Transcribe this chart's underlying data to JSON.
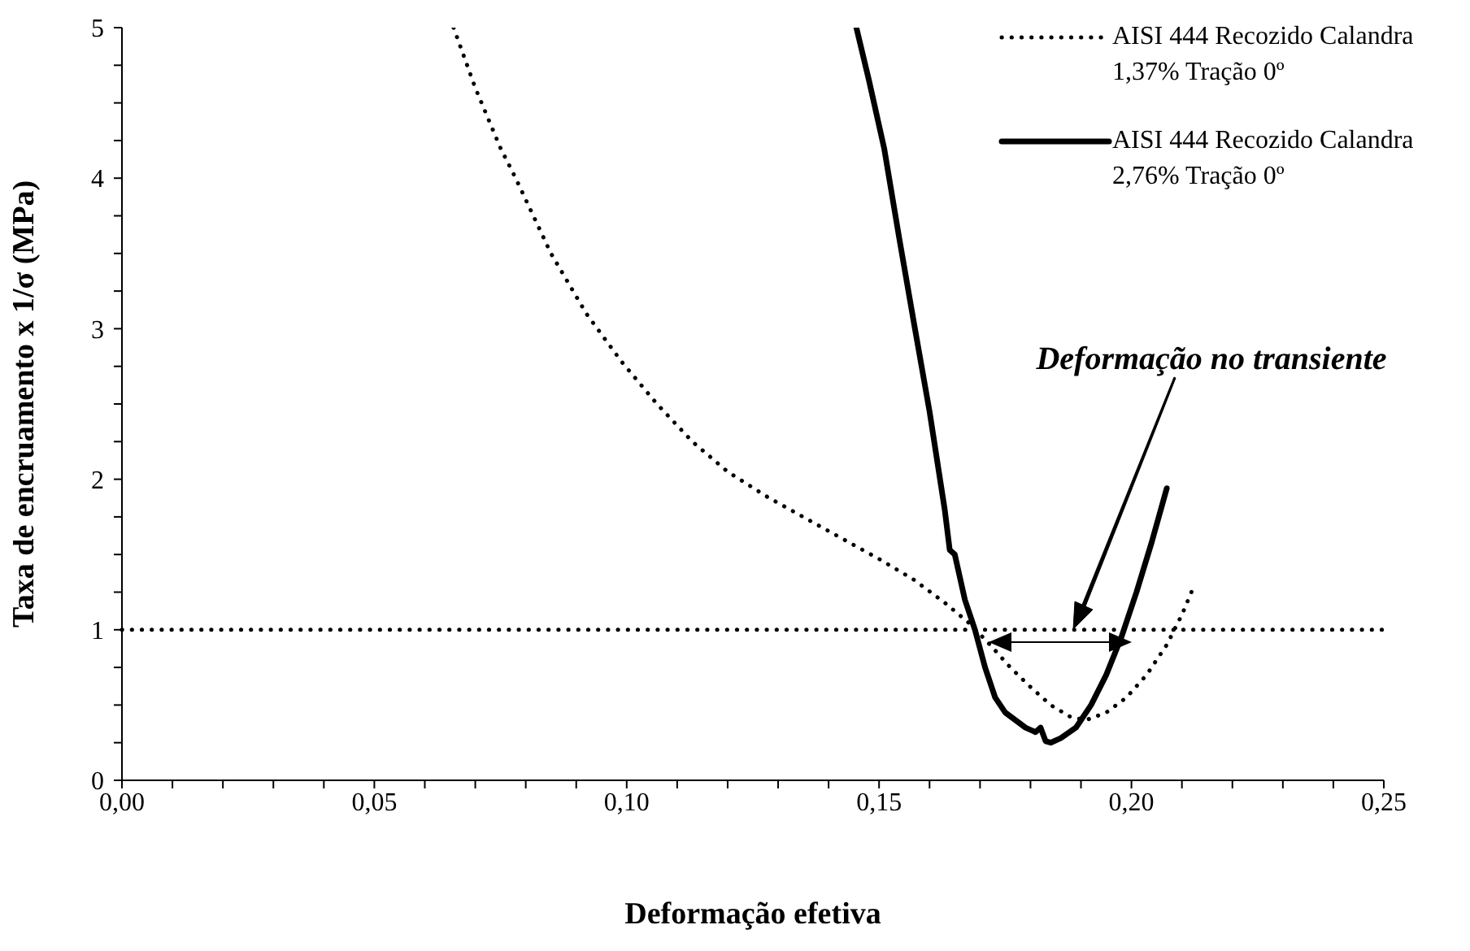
{
  "chart_data": {
    "type": "line",
    "xlabel": "Deformação efetiva",
    "ylabel": "Taxa de encruamento x 1/σ (MPa)",
    "xlim": [
      0,
      0.25
    ],
    "ylim": [
      0,
      5
    ],
    "xticks": [
      {
        "value": 0,
        "label": "0,00"
      },
      {
        "value": 0.01,
        "label": null
      },
      {
        "value": 0.02,
        "label": null
      },
      {
        "value": 0.03,
        "label": null
      },
      {
        "value": 0.04,
        "label": null
      },
      {
        "value": 0.05,
        "label": "0,05"
      },
      {
        "value": 0.06,
        "label": null
      },
      {
        "value": 0.07,
        "label": null
      },
      {
        "value": 0.08,
        "label": null
      },
      {
        "value": 0.09,
        "label": null
      },
      {
        "value": 0.1,
        "label": "0,10"
      },
      {
        "value": 0.11,
        "label": null
      },
      {
        "value": 0.12,
        "label": null
      },
      {
        "value": 0.13,
        "label": null
      },
      {
        "value": 0.14,
        "label": null
      },
      {
        "value": 0.15,
        "label": "0,15"
      },
      {
        "value": 0.16,
        "label": null
      },
      {
        "value": 0.17,
        "label": null
      },
      {
        "value": 0.18,
        "label": null
      },
      {
        "value": 0.19,
        "label": null
      },
      {
        "value": 0.2,
        "label": "0,20"
      },
      {
        "value": 0.21,
        "label": null
      },
      {
        "value": 0.22,
        "label": null
      },
      {
        "value": 0.23,
        "label": null
      },
      {
        "value": 0.24,
        "label": null
      },
      {
        "value": 0.25,
        "label": "0,25"
      }
    ],
    "yticks": [
      0,
      {
        "value": 0.25,
        "label": null
      },
      {
        "value": 0.5,
        "label": null
      },
      {
        "value": 0.75,
        "label": null
      },
      1,
      {
        "value": 1.25,
        "label": null
      },
      {
        "value": 1.5,
        "label": null
      },
      {
        "value": 1.75,
        "label": null
      },
      2,
      {
        "value": 2.25,
        "label": null
      },
      {
        "value": 2.5,
        "label": null
      },
      {
        "value": 2.75,
        "label": null
      },
      3,
      {
        "value": 3.25,
        "label": null
      },
      {
        "value": 3.5,
        "label": null
      },
      {
        "value": 3.75,
        "label": null
      },
      4,
      {
        "value": 4.25,
        "label": null
      },
      {
        "value": 4.5,
        "label": null
      },
      {
        "value": 4.75,
        "label": null
      },
      5
    ],
    "grid": false,
    "legend": "top right",
    "marker": "none",
    "series": [
      {
        "name": "AISI 444 Recozido Calandra 1,37% Tração 0º",
        "color": "#000000",
        "line_style": "dotted",
        "x": [
          0.0657,
          0.07,
          0.075,
          0.078,
          0.085,
          0.092,
          0.099,
          0.106,
          0.113,
          0.12,
          0.128,
          0.136,
          0.143,
          0.15,
          0.157,
          0.163,
          0.168,
          0.172,
          0.176,
          0.18,
          0.184,
          0.188,
          0.191,
          0.195,
          0.199,
          0.203,
          0.207,
          0.21,
          0.212
        ],
        "values": [
          5,
          4.6,
          4.2,
          4.0,
          3.5,
          3.1,
          2.78,
          2.5,
          2.25,
          2.05,
          1.88,
          1.73,
          1.6,
          1.47,
          1.33,
          1.18,
          1.04,
          0.9,
          0.75,
          0.62,
          0.5,
          0.42,
          0.4,
          0.45,
          0.55,
          0.7,
          0.9,
          1.1,
          1.26
        ]
      },
      {
        "name": "AISI 444 Recozido Calandra 2,76% Tração 0º",
        "color": "#000000",
        "line_style": "solid",
        "x": [
          0.1455,
          0.148,
          0.151,
          0.154,
          0.157,
          0.16,
          0.163,
          0.164,
          0.165,
          0.167,
          0.169,
          0.171,
          0.173,
          0.175,
          0.177,
          0.179,
          0.181,
          0.182,
          0.183,
          0.184,
          0.186,
          0.189,
          0.192,
          0.195,
          0.198,
          0.201,
          0.204,
          0.207
        ],
        "values": [
          5,
          4.65,
          4.2,
          3.6,
          3.02,
          2.45,
          1.8,
          1.53,
          1.5,
          1.2,
          1.0,
          0.75,
          0.55,
          0.45,
          0.4,
          0.35,
          0.32,
          0.35,
          0.26,
          0.25,
          0.28,
          0.35,
          0.5,
          0.7,
          0.95,
          1.25,
          1.58,
          1.94
        ]
      }
    ],
    "ref_lines": [
      {
        "axis": "y",
        "value": 1,
        "label": null,
        "color": "#000000",
        "line_style": "dotted"
      }
    ],
    "annotations": [
      "Deformação no transiente"
    ]
  }
}
